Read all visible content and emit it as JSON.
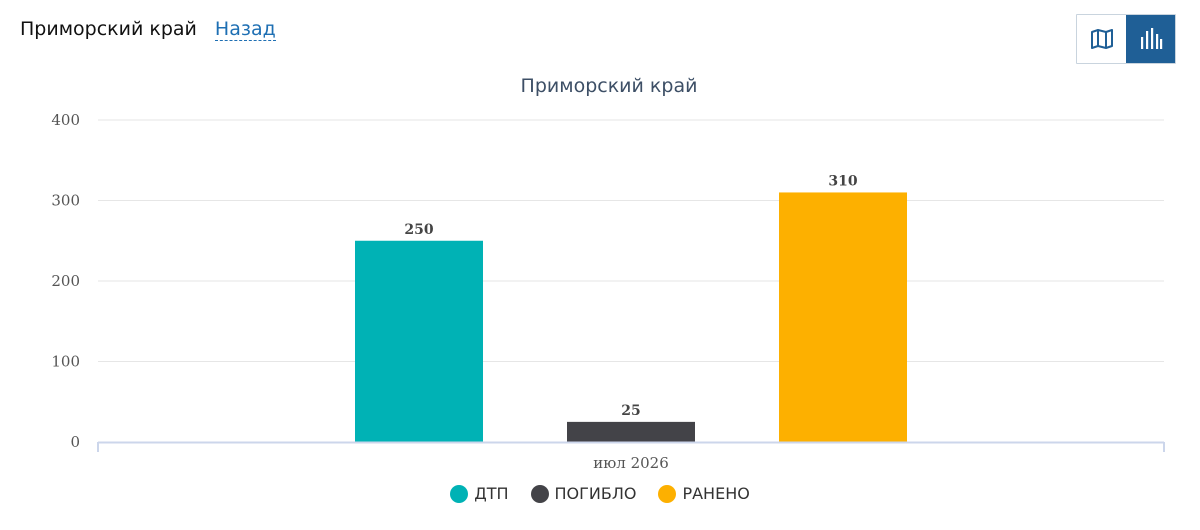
{
  "header": {
    "title": "Приморский край",
    "back_label": "Назад"
  },
  "toolbar": {
    "map_icon": "map-icon",
    "chart_icon": "bar-chart-icon",
    "active": "chart"
  },
  "colors": {
    "accent": "#1f5f96",
    "dtp": "#00b2b5",
    "pogiblo": "#434348",
    "raneno": "#fdb000"
  },
  "chart_data": {
    "type": "bar",
    "title": "Приморский край",
    "categories": [
      "июл 2026"
    ],
    "ylim": [
      0,
      400
    ],
    "yticks": [
      0,
      100,
      200,
      300,
      400
    ],
    "grid": true,
    "legend_position": "bottom",
    "series": [
      {
        "name": "ДТП",
        "values": [
          250
        ],
        "color": "#00b2b5"
      },
      {
        "name": "ПОГИБЛО",
        "values": [
          25
        ],
        "color": "#434348"
      },
      {
        "name": "РАНЕНО",
        "values": [
          310
        ],
        "color": "#fdb000"
      }
    ]
  }
}
